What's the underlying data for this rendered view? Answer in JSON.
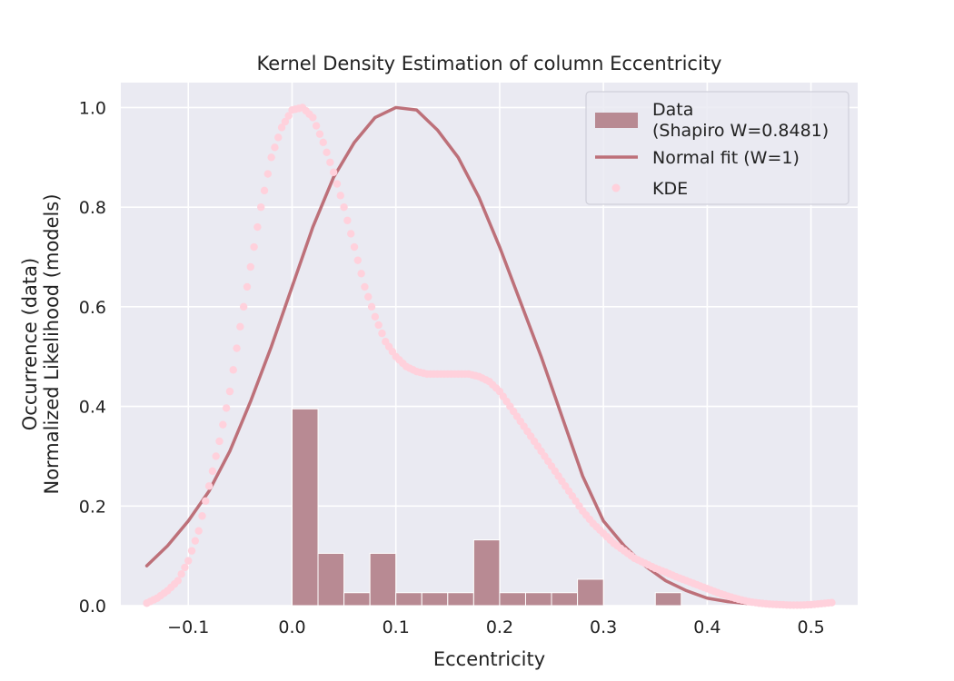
{
  "chart_data": {
    "type": "bar",
    "title": "Kernel Density Estimation of column Eccentricity",
    "xlabel": "Eccentricity",
    "ylabel_lines": [
      "Occurrence (data)",
      "Normalized Likelihood (models)"
    ],
    "xlim": [
      -0.165,
      0.545
    ],
    "ylim": [
      0,
      1.05
    ],
    "x_ticks": [
      -0.1,
      0.0,
      0.1,
      0.2,
      0.3,
      0.4,
      0.5
    ],
    "x_tick_labels": [
      "−0.1",
      "0.0",
      "0.1",
      "0.2",
      "0.3",
      "0.4",
      "0.5"
    ],
    "y_ticks": [
      0.0,
      0.2,
      0.4,
      0.6,
      0.8,
      1.0
    ],
    "y_tick_labels": [
      "0.0",
      "0.2",
      "0.4",
      "0.6",
      "0.8",
      "1.0"
    ],
    "grid": true,
    "legend_position": "top-right",
    "colors": {
      "plot_background": "#eaeaf2",
      "grid": "#ffffff",
      "histogram": "#b88a93",
      "normal_fit": "#bd7079",
      "kde": "#ffd1dc"
    },
    "histogram": {
      "name": "Data\n(Shapiro W=0.8481)",
      "bin_edges": [
        0.0,
        0.025,
        0.05,
        0.075,
        0.1,
        0.125,
        0.15,
        0.175,
        0.2,
        0.225,
        0.25,
        0.275,
        0.3,
        0.325,
        0.35,
        0.375
      ],
      "values": [
        0.395,
        0.105,
        0.026,
        0.105,
        0.026,
        0.026,
        0.026,
        0.132,
        0.026,
        0.026,
        0.026,
        0.053,
        0.0,
        0.0,
        0.026
      ]
    },
    "series": [
      {
        "name": "Normal fit (W=1)",
        "style": "line",
        "x": [
          -0.14,
          -0.12,
          -0.1,
          -0.08,
          -0.06,
          -0.04,
          -0.02,
          0.0,
          0.02,
          0.04,
          0.06,
          0.08,
          0.1,
          0.12,
          0.14,
          0.16,
          0.18,
          0.2,
          0.22,
          0.24,
          0.26,
          0.28,
          0.3,
          0.32,
          0.34,
          0.36,
          0.38,
          0.4,
          0.42,
          0.44,
          0.46,
          0.48
        ],
        "y": [
          0.08,
          0.12,
          0.17,
          0.23,
          0.31,
          0.41,
          0.52,
          0.64,
          0.76,
          0.86,
          0.93,
          0.98,
          1.0,
          0.995,
          0.955,
          0.9,
          0.82,
          0.72,
          0.61,
          0.5,
          0.38,
          0.26,
          0.17,
          0.12,
          0.08,
          0.05,
          0.03,
          0.015,
          0.008,
          0.004,
          0.002,
          0.001
        ]
      },
      {
        "name": "KDE",
        "style": "dots",
        "x": [
          -0.14,
          -0.13,
          -0.12,
          -0.11,
          -0.1,
          -0.09,
          -0.08,
          -0.07,
          -0.06,
          -0.05,
          -0.04,
          -0.03,
          -0.02,
          -0.01,
          0.0,
          0.01,
          0.02,
          0.03,
          0.04,
          0.05,
          0.06,
          0.07,
          0.08,
          0.09,
          0.1,
          0.11,
          0.12,
          0.13,
          0.14,
          0.15,
          0.16,
          0.17,
          0.18,
          0.19,
          0.2,
          0.21,
          0.22,
          0.23,
          0.24,
          0.25,
          0.26,
          0.27,
          0.28,
          0.29,
          0.3,
          0.31,
          0.32,
          0.33,
          0.34,
          0.35,
          0.36,
          0.37,
          0.38,
          0.39,
          0.4,
          0.41,
          0.42,
          0.43,
          0.44,
          0.45,
          0.46,
          0.47,
          0.48,
          0.49,
          0.5,
          0.51,
          0.52
        ],
        "y": [
          0.005,
          0.015,
          0.03,
          0.05,
          0.09,
          0.15,
          0.24,
          0.33,
          0.43,
          0.56,
          0.68,
          0.8,
          0.9,
          0.96,
          0.995,
          1.0,
          0.98,
          0.93,
          0.87,
          0.8,
          0.72,
          0.64,
          0.58,
          0.53,
          0.5,
          0.48,
          0.47,
          0.465,
          0.465,
          0.465,
          0.465,
          0.465,
          0.46,
          0.45,
          0.43,
          0.4,
          0.37,
          0.34,
          0.31,
          0.28,
          0.25,
          0.22,
          0.19,
          0.165,
          0.145,
          0.125,
          0.11,
          0.095,
          0.085,
          0.075,
          0.067,
          0.058,
          0.05,
          0.042,
          0.034,
          0.026,
          0.019,
          0.013,
          0.008,
          0.005,
          0.003,
          0.002,
          0.001,
          0.001,
          0.002,
          0.004,
          0.006
        ]
      }
    ]
  }
}
